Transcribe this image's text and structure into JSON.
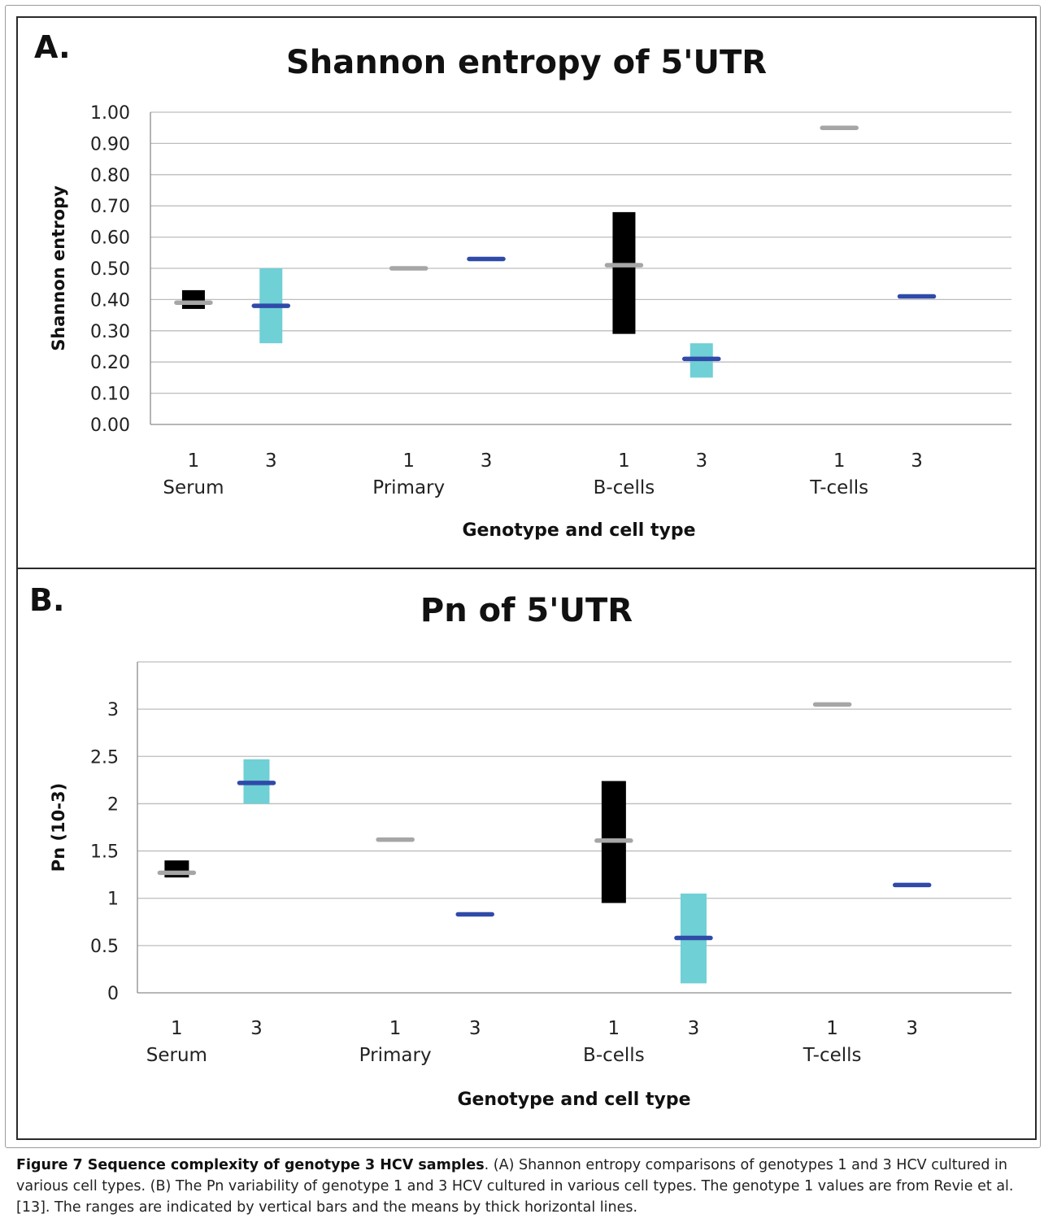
{
  "charts": [
    {
      "letter": "A.",
      "chart_data": {
        "type": "range-mean",
        "title": "Shannon entropy of 5'UTR",
        "xlabel": "Genotype and cell type",
        "ylabel": "Shannon entropy",
        "ylim": [
          0,
          1.0
        ],
        "yticks": [
          "0.00",
          "0.10",
          "0.20",
          "0.30",
          "0.40",
          "0.50",
          "0.60",
          "0.70",
          "0.80",
          "0.90",
          "1.00"
        ],
        "groups": [
          "Serum",
          "Primary",
          "B-cells",
          "T-cells"
        ],
        "genotypes": [
          "1",
          "3"
        ],
        "points": [
          {
            "group": "Serum",
            "genotype": "1",
            "min": 0.37,
            "max": 0.43,
            "mean": 0.39
          },
          {
            "group": "Serum",
            "genotype": "3",
            "min": 0.26,
            "max": 0.5,
            "mean": 0.38
          },
          {
            "group": "Primary",
            "genotype": "1",
            "min": null,
            "max": null,
            "mean": 0.5
          },
          {
            "group": "Primary",
            "genotype": "3",
            "min": null,
            "max": null,
            "mean": 0.53
          },
          {
            "group": "B-cells",
            "genotype": "1",
            "min": 0.29,
            "max": 0.68,
            "mean": 0.51
          },
          {
            "group": "B-cells",
            "genotype": "3",
            "min": 0.15,
            "max": 0.26,
            "mean": 0.21
          },
          {
            "group": "T-cells",
            "genotype": "1",
            "min": null,
            "max": null,
            "mean": 0.95
          },
          {
            "group": "T-cells",
            "genotype": "3",
            "min": null,
            "max": null,
            "mean": 0.41
          }
        ],
        "grid": true
      }
    },
    {
      "letter": "B.",
      "chart_data": {
        "type": "range-mean",
        "title": "Pn of 5'UTR",
        "xlabel": "Genotype and cell type",
        "ylabel": "Pn (10-3)",
        "ylim": [
          0,
          3.5
        ],
        "yticks": [
          "0",
          "0.5",
          "1",
          "1.5",
          "2",
          "2.5",
          "3"
        ],
        "groups": [
          "Serum",
          "Primary",
          "B-cells",
          "T-cells"
        ],
        "genotypes": [
          "1",
          "3"
        ],
        "points": [
          {
            "group": "Serum",
            "genotype": "1",
            "min": 1.22,
            "max": 1.4,
            "mean": 1.27
          },
          {
            "group": "Serum",
            "genotype": "3",
            "min": 2.0,
            "max": 2.47,
            "mean": 2.22
          },
          {
            "group": "Primary",
            "genotype": "1",
            "min": null,
            "max": null,
            "mean": 1.62
          },
          {
            "group": "Primary",
            "genotype": "3",
            "min": null,
            "max": null,
            "mean": 0.83
          },
          {
            "group": "B-cells",
            "genotype": "1",
            "min": 0.95,
            "max": 2.24,
            "mean": 1.61
          },
          {
            "group": "B-cells",
            "genotype": "3",
            "min": 0.1,
            "max": 1.05,
            "mean": 0.58
          },
          {
            "group": "T-cells",
            "genotype": "1",
            "min": null,
            "max": null,
            "mean": 3.05
          },
          {
            "group": "T-cells",
            "genotype": "3",
            "min": null,
            "max": null,
            "mean": 1.14
          }
        ],
        "grid": true
      }
    }
  ],
  "colors": {
    "genotype1_range": "#000000",
    "genotype1_mean": "#a6a6a6",
    "genotype3_range": "#6fd0d6",
    "genotype3_mean": "#2f4aa8",
    "grid": "#bdbdbd",
    "axis": "#8c8c8c"
  },
  "caption": {
    "bold": "Figure 7 Sequence complexity of genotype 3 HCV samples",
    "text": ". (A) Shannon entropy comparisons of genotypes 1 and 3 HCV cultured in various cell types. (B) The Pn variability of genotype 1 and 3 HCV cultured in various cell types. The genotype 1 values are from Revie et al. [13]. The ranges are indicated by vertical bars and the means by thick horizontal lines."
  }
}
